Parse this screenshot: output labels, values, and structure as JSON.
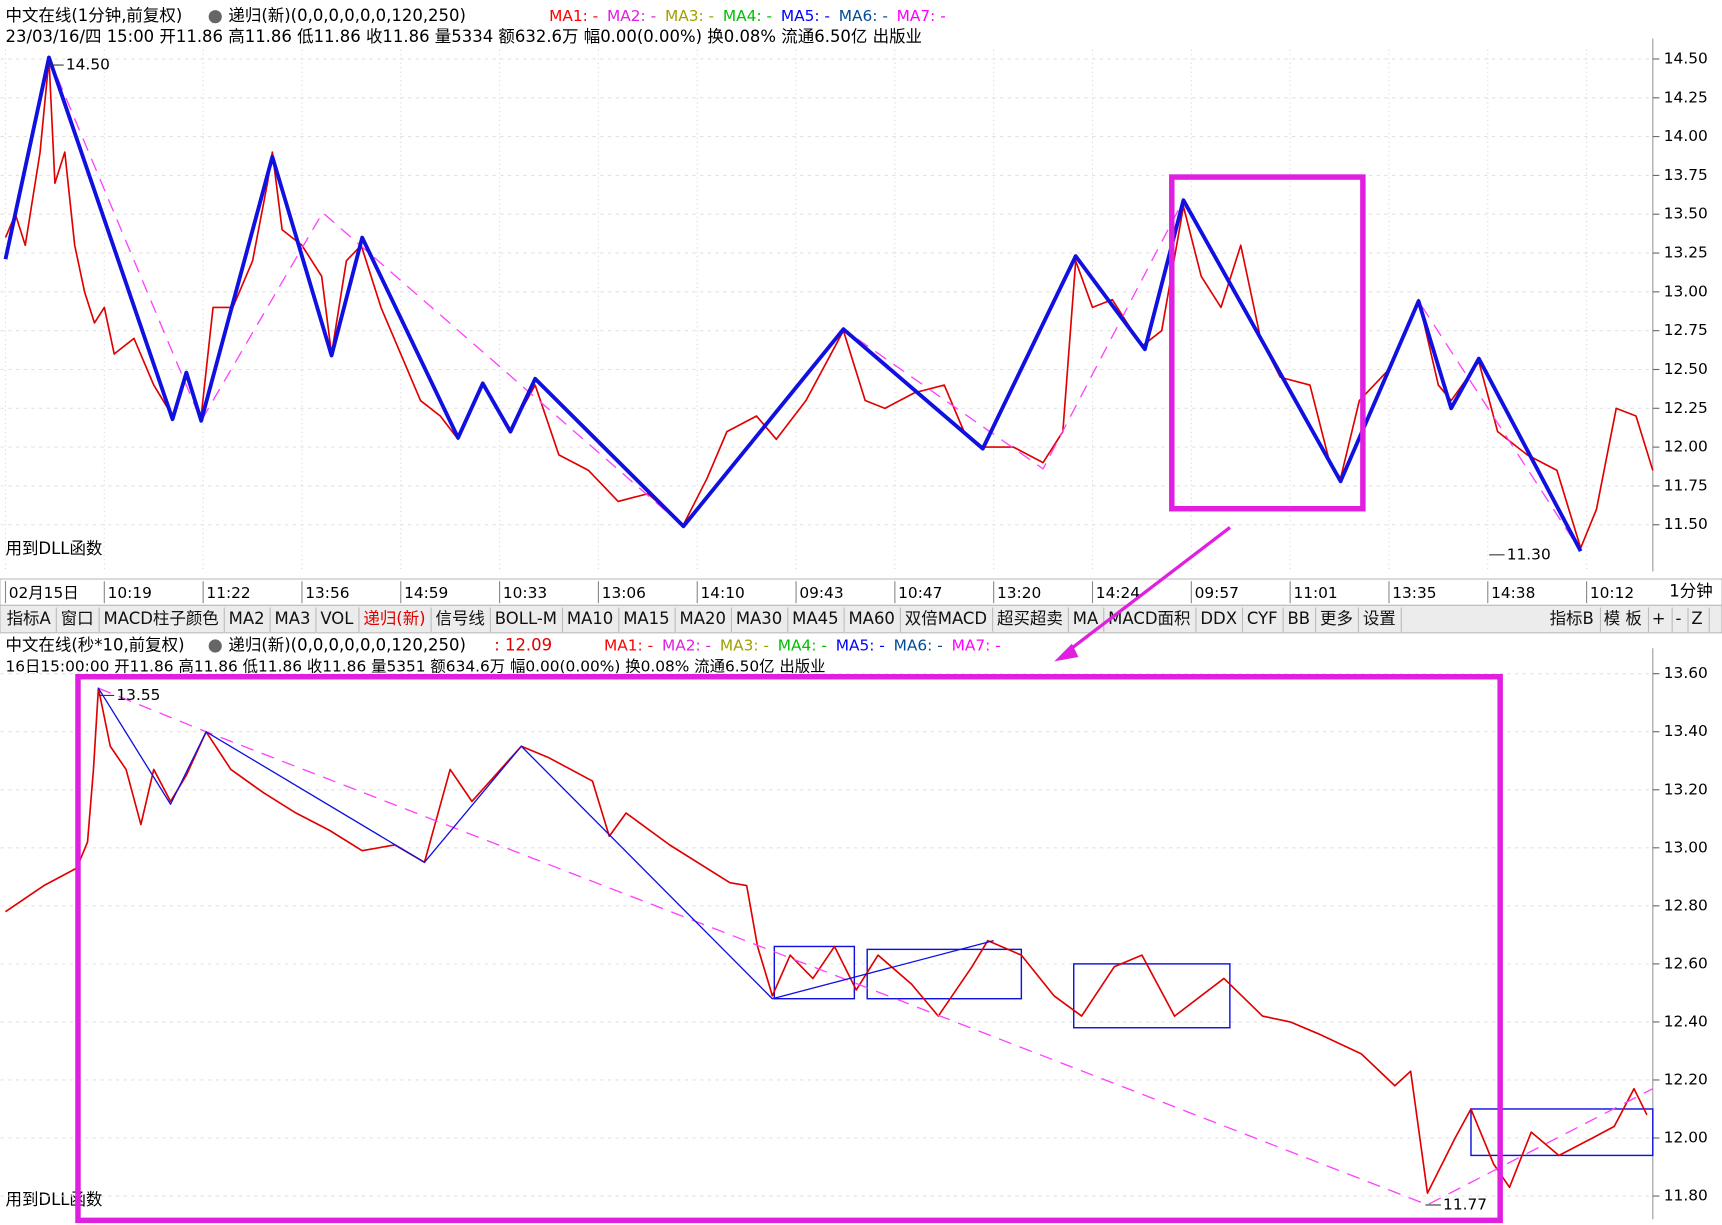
{
  "chart_data": [
    {
      "type": "line",
      "title": "中文在线(1分钟,前复权)",
      "indicator": "递归(新)(0,0,0,0,0,0,120,250)",
      "legend": [
        {
          "name": "MA1: -",
          "color": "#ff0000"
        },
        {
          "name": "MA2: -",
          "color": "#e020e0"
        },
        {
          "name": "MA3: -",
          "color": "#a0a000"
        },
        {
          "name": "MA4: -",
          "color": "#00c000"
        },
        {
          "name": "MA5: -",
          "color": "#0000ff"
        },
        {
          "name": "MA6: -",
          "color": "#004c99"
        },
        {
          "name": "MA7: -",
          "color": "#ff00ff"
        }
      ],
      "info": "23/03/16/四 15:00 开11.86 高11.86 低11.86 收11.86 量5334 额632.6万 幅0.00(0.00%) 换0.08% 流通6.50亿 出版业",
      "note": "用到DLL函数",
      "annotations": [
        "14.50",
        "11.30"
      ],
      "timeframe": "1分钟",
      "grid": true,
      "xlim": [
        -0.05,
        16.67
      ],
      "xticks": [
        {
          "value": 0,
          "label": "02月15日"
        },
        {
          "value": 1,
          "label": "10:19"
        },
        {
          "value": 2,
          "label": "11:22"
        },
        {
          "value": 3,
          "label": "13:56"
        },
        {
          "value": 4,
          "label": "14:59"
        },
        {
          "value": 5,
          "label": "10:33"
        },
        {
          "value": 6,
          "label": "13:06"
        },
        {
          "value": 7,
          "label": "14:10"
        },
        {
          "value": 8,
          "label": "09:43"
        },
        {
          "value": 9,
          "label": "10:47"
        },
        {
          "value": 10,
          "label": "13:20"
        },
        {
          "value": 11,
          "label": "14:24"
        },
        {
          "value": 12,
          "label": "09:57"
        },
        {
          "value": 13,
          "label": "11:01"
        },
        {
          "value": 14,
          "label": "13:35"
        },
        {
          "value": 15,
          "label": "14:38"
        },
        {
          "value": 16,
          "label": "10:12"
        }
      ],
      "ylim": [
        11.2,
        14.56
      ],
      "yticks": [
        {
          "value": 11.5,
          "label": "11.50"
        },
        {
          "value": 11.75,
          "label": "11.75"
        },
        {
          "value": 12,
          "label": "12.00"
        },
        {
          "value": 12.25,
          "label": "12.25"
        },
        {
          "value": 12.5,
          "label": "12.50"
        },
        {
          "value": 12.75,
          "label": "12.75"
        },
        {
          "value": 13,
          "label": "13.00"
        },
        {
          "value": 13.25,
          "label": "13.25"
        },
        {
          "value": 13.5,
          "label": "13.50"
        },
        {
          "value": 13.75,
          "label": "13.75"
        },
        {
          "value": 14,
          "label": "14.00"
        },
        {
          "value": 14.25,
          "label": "14.25"
        },
        {
          "value": 14.5,
          "label": "14.50"
        }
      ],
      "series": [
        {
          "color": "#e00000",
          "width": 1.5,
          "dashed": false,
          "x": [
            0,
            0.1,
            0.2,
            0.35,
            0.44,
            0.5,
            0.6,
            0.7,
            0.8,
            0.9,
            1.0,
            1.1,
            1.3,
            1.5,
            1.69,
            1.83,
            1.98,
            2.1,
            2.3,
            2.5,
            2.65,
            2.7,
            2.8,
            3.0,
            3.2,
            3.3,
            3.45,
            3.6,
            3.8,
            4.0,
            4.2,
            4.4,
            4.58,
            4.83,
            5.1,
            5.36,
            5.6,
            5.9,
            6.2,
            6.5,
            6.86,
            7.1,
            7.3,
            7.6,
            7.8,
            8.1,
            8.48,
            8.7,
            8.9,
            9.2,
            9.5,
            9.7,
            9.89,
            10.2,
            10.5,
            10.7,
            10.83,
            11.0,
            11.2,
            11.5,
            11.7,
            11.92,
            12.1,
            12.3,
            12.5,
            12.7,
            12.9,
            13.2,
            13.4,
            13.51,
            13.7,
            14.0,
            14.3,
            14.5,
            14.63,
            14.91,
            15.1,
            15.4,
            15.7,
            15.94,
            16.1,
            16.3,
            16.5,
            16.67
          ],
          "values": [
            13.35,
            13.5,
            13.3,
            13.9,
            14.5,
            13.7,
            13.9,
            13.3,
            13.0,
            12.8,
            12.9,
            12.6,
            12.7,
            12.4,
            12.2,
            12.45,
            12.2,
            12.9,
            12.9,
            13.2,
            13.7,
            13.9,
            13.4,
            13.3,
            13.1,
            12.6,
            13.2,
            13.3,
            12.9,
            12.6,
            12.3,
            12.2,
            12.05,
            12.4,
            12.1,
            12.4,
            11.95,
            11.85,
            11.65,
            11.7,
            11.5,
            11.8,
            12.1,
            12.2,
            12.05,
            12.3,
            12.75,
            12.3,
            12.25,
            12.35,
            12.4,
            12.1,
            12.0,
            12.0,
            11.9,
            12.1,
            13.2,
            12.9,
            12.95,
            12.65,
            12.75,
            13.55,
            13.1,
            12.9,
            13.3,
            12.7,
            12.45,
            12.4,
            11.9,
            11.8,
            12.3,
            12.5,
            12.95,
            12.4,
            12.3,
            12.55,
            12.1,
            11.95,
            11.85,
            11.35,
            11.6,
            12.25,
            12.2,
            11.85
          ]
        },
        {
          "color": "#ff40ff",
          "width": 1.2,
          "dashed": true,
          "x": [
            0.44,
            1.98,
            3.21,
            6.86,
            8.48,
            10.5,
            11.92,
            13.51,
            14.3,
            15.94
          ],
          "values": [
            14.51,
            12.17,
            13.51,
            11.49,
            12.76,
            11.86,
            13.59,
            11.78,
            12.94,
            11.33
          ]
        },
        {
          "color": "#1010e0",
          "width": 3.5,
          "dashed": false,
          "x": [
            0,
            0.44,
            1.69,
            1.83,
            1.98,
            2.7,
            3.3,
            3.61,
            4.58,
            4.83,
            5.11,
            5.36,
            6.86,
            8.48,
            9.89,
            10.83,
            11.53,
            11.92,
            13.51,
            14.3,
            14.63,
            14.91,
            15.94
          ],
          "values": [
            13.21,
            14.51,
            12.18,
            12.48,
            12.17,
            13.87,
            12.59,
            13.35,
            12.06,
            12.41,
            12.1,
            12.44,
            11.49,
            12.76,
            11.99,
            13.23,
            12.63,
            13.59,
            11.78,
            12.94,
            12.25,
            12.57,
            11.33
          ]
        }
      ]
    },
    {
      "type": "line",
      "title": "中文在线(秒*10,前复权)",
      "indicator": "递归(新)(0,0,0,0,0,0,120,250)",
      "indicator_value": ": 12.09",
      "legend": [
        {
          "name": "MA1: -",
          "color": "#ff0000"
        },
        {
          "name": "MA2: -",
          "color": "#e020e0"
        },
        {
          "name": "MA3: -",
          "color": "#a0a000"
        },
        {
          "name": "MA4: -",
          "color": "#00c000"
        },
        {
          "name": "MA5: -",
          "color": "#0000ff"
        },
        {
          "name": "MA6: -",
          "color": "#004c99"
        },
        {
          "name": "MA7: -",
          "color": "#ff00ff"
        }
      ],
      "info": "16日15:00:00 开11.86 高11.86 低11.86 收11.86 量5351 额634.6万 幅0.00(0.00%) 换0.08% 流通6.50亿 出版业",
      "note": "用到DLL函数",
      "annotations": [
        "13.55",
        "11.77"
      ],
      "grid": true,
      "xlim": [
        -0.05,
        16.67
      ],
      "ylim": [
        11.72,
        13.65
      ],
      "yticks": [
        {
          "value": 11.8,
          "label": "11.80"
        },
        {
          "value": 12,
          "label": "12.00"
        },
        {
          "value": 12.2,
          "label": "12.20"
        },
        {
          "value": 12.4,
          "label": "12.40"
        },
        {
          "value": 12.6,
          "label": "12.60"
        },
        {
          "value": 12.8,
          "label": "12.80"
        },
        {
          "value": 13,
          "label": "13.00"
        },
        {
          "value": 13.2,
          "label": "13.20"
        },
        {
          "value": 13.4,
          "label": "13.40"
        },
        {
          "value": 13.6,
          "label": "13.60"
        }
      ],
      "boxes": {
        "color": "#1010e0",
        "items": [
          {
            "x": [
              7.78,
              8.59
            ],
            "y": [
              12.48,
              12.66
            ]
          },
          {
            "x": [
              8.72,
              10.28
            ],
            "y": [
              12.48,
              12.65
            ]
          },
          {
            "x": [
              10.81,
              12.39
            ],
            "y": [
              12.38,
              12.6
            ]
          },
          {
            "x": [
              14.83,
              16.67
            ],
            "y": [
              11.94,
              12.1
            ]
          }
        ]
      },
      "series": [
        {
          "color": "#e00000",
          "width": 1.5,
          "dashed": false,
          "x": [
            0,
            0.39,
            0.72,
            0.83,
            0.89,
            0.94,
            1.06,
            1.22,
            1.37,
            1.5,
            1.67,
            1.83,
            2.03,
            2.28,
            2.61,
            2.94,
            3.28,
            3.61,
            3.94,
            4.24,
            4.5,
            4.72,
            5.22,
            5.5,
            5.94,
            6.11,
            6.28,
            6.72,
            7.33,
            7.5,
            7.61,
            7.76,
            7.94,
            8.17,
            8.39,
            8.61,
            8.83,
            9.17,
            9.44,
            9.78,
            9.94,
            10.28,
            10.61,
            10.89,
            11.22,
            11.5,
            11.83,
            12.33,
            12.72,
            13.0,
            13.28,
            13.72,
            14.06,
            14.22,
            14.39,
            14.67,
            14.83,
            15.06,
            15.22,
            15.44,
            15.72,
            16.06,
            16.28,
            16.48,
            16.61
          ],
          "values": [
            12.78,
            12.87,
            12.93,
            13.02,
            13.27,
            13.55,
            13.35,
            13.27,
            13.08,
            13.27,
            13.16,
            13.25,
            13.4,
            13.27,
            13.19,
            13.12,
            13.06,
            12.99,
            13.01,
            12.95,
            13.27,
            13.16,
            13.35,
            13.31,
            13.23,
            13.04,
            13.12,
            13.01,
            12.88,
            12.87,
            12.66,
            12.49,
            12.63,
            12.55,
            12.66,
            12.51,
            12.63,
            12.53,
            12.42,
            12.59,
            12.68,
            12.63,
            12.49,
            12.42,
            12.59,
            12.63,
            12.42,
            12.55,
            12.42,
            12.4,
            12.36,
            12.29,
            12.18,
            12.23,
            11.81,
            12.0,
            12.1,
            11.91,
            11.83,
            12.02,
            11.94,
            12.0,
            12.04,
            12.17,
            12.08
          ]
        },
        {
          "color": "#ff40ff",
          "width": 1.2,
          "dashed": true,
          "x": [
            0.94,
            2.03,
            14.39,
            16.67
          ],
          "values": [
            13.55,
            13.4,
            11.77,
            12.17
          ]
        },
        {
          "color": "#1010e0",
          "width": 1.2,
          "dashed": false,
          "x": [
            0.94,
            1.67,
            2.03,
            4.24,
            5.22,
            7.76,
            10.0
          ],
          "values": [
            13.55,
            13.15,
            13.4,
            12.95,
            13.35,
            12.48,
            12.68
          ]
        }
      ]
    }
  ],
  "toolbar": {
    "items": [
      "指标A",
      "窗口",
      "MACD柱子颜色",
      "MA2",
      "MA3",
      "VOL",
      "递归(新)",
      "信号线",
      "BOLL-M",
      "MA10",
      "MA15",
      "MA20",
      "MA30",
      "MA45",
      "MA60",
      "双倍MACD",
      "超买超卖",
      "MA",
      "MACD面积",
      "DDX",
      "CYF",
      "BB",
      "更多",
      "设置"
    ],
    "right_items": [
      "指标B",
      "模 板",
      "+",
      "-",
      "Z"
    ],
    "highlight_index": 6
  }
}
